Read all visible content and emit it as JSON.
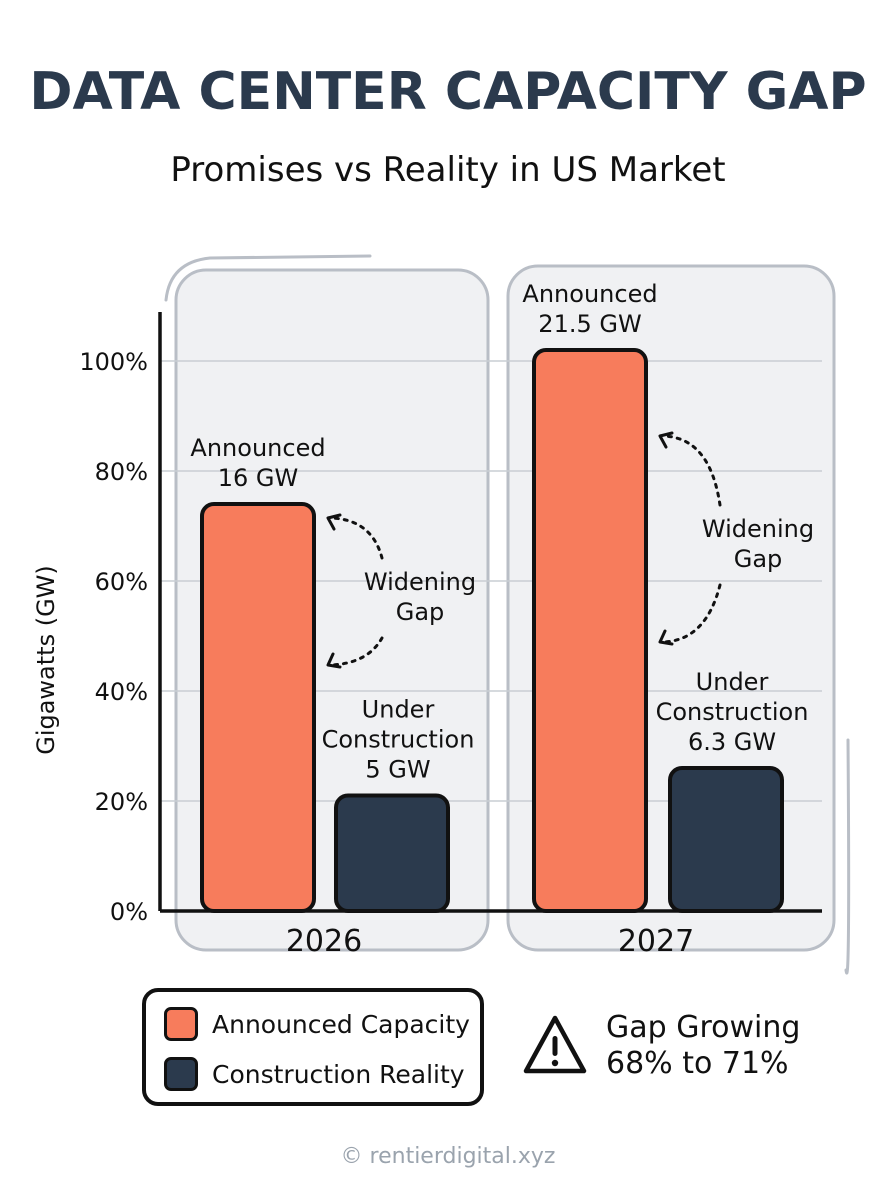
{
  "header": {
    "title": "DATA CENTER CAPACITY GAP",
    "subtitle": "Promises vs Reality in US Market"
  },
  "chart_data": {
    "type": "bar",
    "title": "DATA CENTER CAPACITY GAP",
    "subtitle": "Promises vs Reality in US Market",
    "ylabel": "Gigawatts (GW)",
    "xlabel": "",
    "ylim": [
      0,
      100
    ],
    "yticks": [
      "0%",
      "20%",
      "40%",
      "60%",
      "80%",
      "100%"
    ],
    "ytick_values": [
      0,
      20,
      40,
      60,
      80,
      100
    ],
    "grid": true,
    "categories": [
      "2026",
      "2027"
    ],
    "series": [
      {
        "name": "Announced Capacity",
        "color": "#f77c5c",
        "values": [
          74,
          102
        ],
        "labels": [
          [
            "Announced",
            "16 GW"
          ],
          [
            "Announced",
            "21.5 GW"
          ]
        ]
      },
      {
        "name": "Construction Reality",
        "color": "#2b3a4d",
        "values": [
          21,
          26
        ],
        "labels": [
          [
            "Under",
            "Construction",
            "5 GW"
          ],
          [
            "Under",
            "Construction",
            "6.3 GW"
          ]
        ]
      }
    ],
    "annotations": [
      {
        "category": "2026",
        "text": [
          "Widening",
          "Gap"
        ]
      },
      {
        "category": "2027",
        "text": [
          "Widening",
          "Gap"
        ]
      }
    ],
    "legend_position": "bottom-left"
  },
  "legend": {
    "items": [
      {
        "label": "Announced Capacity",
        "color": "#f77c5c"
      },
      {
        "label": "Construction Reality",
        "color": "#2b3a4d"
      }
    ]
  },
  "note": {
    "icon": "warning-icon",
    "line1": "Gap Growing",
    "line2": "68% to 71%"
  },
  "footer": {
    "text": "© rentierdigital.xyz"
  }
}
